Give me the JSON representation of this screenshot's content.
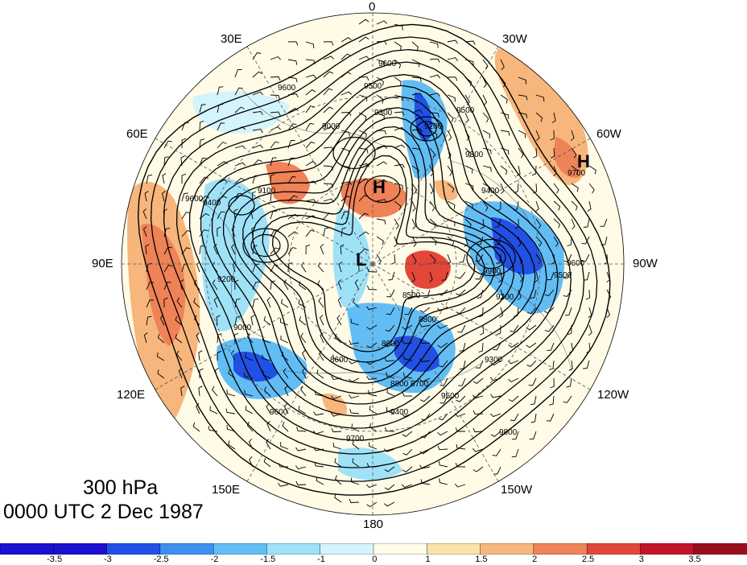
{
  "map": {
    "level": "300 hPa",
    "valid_time": "0000 UTC 2 Dec 1987",
    "projection": "north-polar-stereographic",
    "shading_colors": [
      "#1c0fd0",
      "#2050e6",
      "#3f8ff0",
      "#62bdf5",
      "#9fe2f8",
      "#d4f4fb",
      "#fffbe6",
      "#fbe3a8",
      "#f7b67c",
      "#ef8257",
      "#e2473a",
      "#c3152a",
      "#9a0f1f"
    ],
    "longitude_labels": [
      {
        "text": "0",
        "name": "lon-label-0"
      },
      {
        "text": "30W",
        "name": "lon-label-30w"
      },
      {
        "text": "60W",
        "name": "lon-label-60w"
      },
      {
        "text": "90W",
        "name": "lon-label-90w"
      },
      {
        "text": "120W",
        "name": "lon-label-120w"
      },
      {
        "text": "150W",
        "name": "lon-label-150w"
      },
      {
        "text": "180",
        "name": "lon-label-180"
      },
      {
        "text": "150E",
        "name": "lon-label-150e"
      },
      {
        "text": "120E",
        "name": "lon-label-120e"
      },
      {
        "text": "90E",
        "name": "lon-label-90e"
      },
      {
        "text": "60E",
        "name": "lon-label-60e"
      },
      {
        "text": "30E",
        "name": "lon-label-30e"
      }
    ],
    "pressure_centers": [
      {
        "text": "H",
        "name": "high-center-greenland"
      },
      {
        "text": "H",
        "name": "high-center-arctic"
      },
      {
        "text": "L",
        "name": "low-center-arctic"
      }
    ],
    "contour_labels": [
      "9600",
      "9500",
      "9300",
      "9200",
      "9100",
      "9000",
      "8900",
      "8800",
      "8700",
      "8600",
      "8500",
      "8400",
      "9400",
      "9700",
      "9800"
    ]
  },
  "colorbar": {
    "colors": [
      "#1c0fd0",
      "#2050e6",
      "#3f8ff0",
      "#62bdf5",
      "#9fe2f8",
      "#d4f4fb",
      "#fffbe6",
      "#fbe3a8",
      "#f7b67c",
      "#ef8257",
      "#e2473a",
      "#c3152a",
      "#9a0f1f"
    ],
    "labels": [
      "-3.5",
      "-3",
      "-2.5",
      "-2",
      "-1.5",
      "-1",
      "0",
      "1",
      "1.5",
      "2",
      "2.5",
      "3",
      "3.5"
    ]
  }
}
